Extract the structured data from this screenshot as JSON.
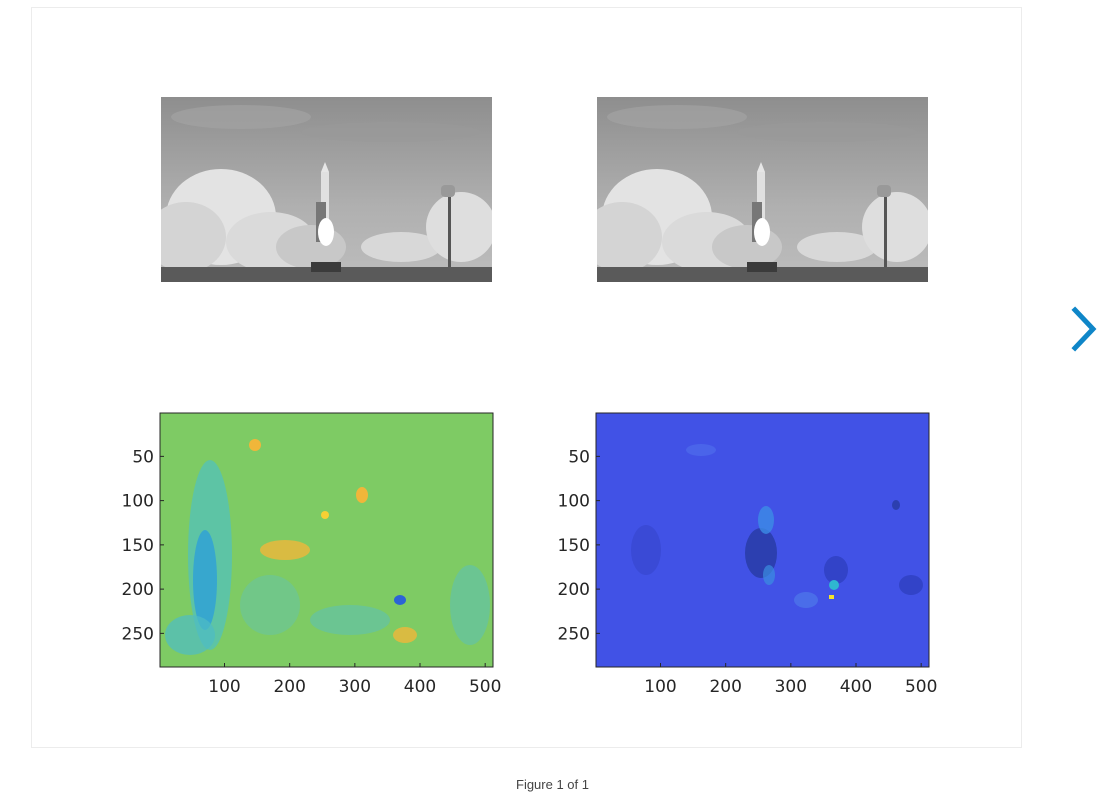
{
  "figure": {
    "caption": "Figure 1 of 1",
    "next_button_icon": "chevron-right-icon",
    "accent_color": "#0f86c8"
  },
  "panels": [
    {
      "position": "top-left",
      "kind": "image",
      "description_icon": "grayscale-photo"
    },
    {
      "position": "top-right",
      "kind": "image",
      "description_icon": "grayscale-photo"
    },
    {
      "position": "bottom-left",
      "kind": "heatmap",
      "colormap": "parula",
      "background_color": "#7ecb64"
    },
    {
      "position": "bottom-right",
      "kind": "heatmap",
      "colormap": "parula",
      "background_color": "#4152e6"
    }
  ],
  "chart_data": [
    {
      "type": "heatmap",
      "xticks": [
        100,
        200,
        300,
        400,
        500
      ],
      "yticks": [
        50,
        100,
        150,
        200,
        250
      ],
      "xlim": [
        1,
        512
      ],
      "ylim": [
        1,
        288
      ],
      "y_direction": "reversed",
      "grid": false
    },
    {
      "type": "heatmap",
      "xticks": [
        100,
        200,
        300,
        400,
        500
      ],
      "yticks": [
        50,
        100,
        150,
        200,
        250
      ],
      "xlim": [
        1,
        512
      ],
      "ylim": [
        1,
        288
      ],
      "y_direction": "reversed",
      "grid": false
    }
  ]
}
